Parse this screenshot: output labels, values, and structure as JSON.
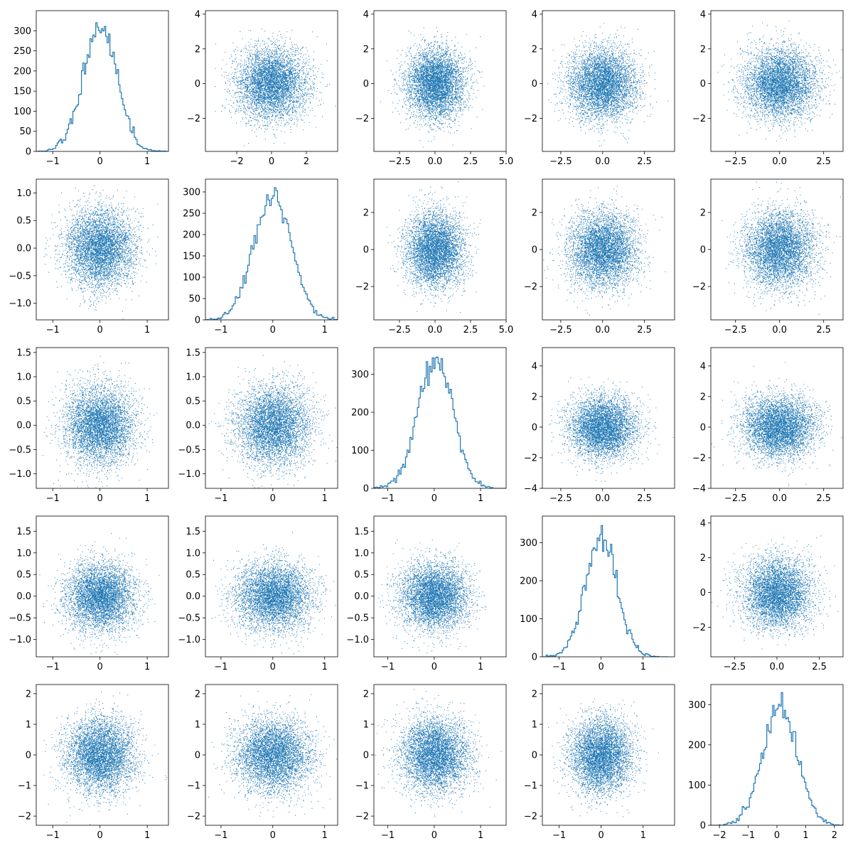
{
  "chart_data": {
    "type": "scatter-matrix",
    "rows": 5,
    "cols": 5,
    "color": "#1f77b4",
    "panels": [
      {
        "row": 0,
        "col": 0,
        "type": "histogram",
        "xlim": [
          -1.35,
          1.45
        ],
        "ylim": [
          0,
          350
        ],
        "xticks": [
          -1,
          0,
          1
        ],
        "yticks": [
          0,
          50,
          100,
          150,
          200,
          250,
          300
        ],
        "ylabels": [
          "0",
          "50",
          "100",
          "150",
          "200",
          "250",
          "300"
        ],
        "sdx": 0.36,
        "center": 0.0,
        "peak": 320
      },
      {
        "row": 0,
        "col": 1,
        "type": "scatter",
        "xlim": [
          -3.8,
          3.8
        ],
        "ylim": [
          -3.9,
          4.2
        ],
        "xticks": [
          -2,
          0,
          2
        ],
        "yticks": [
          -2,
          0,
          2,
          4
        ],
        "xlabels": [
          "−2",
          "0",
          "2"
        ],
        "ylabels": [
          "−2",
          "0",
          "2",
          "4"
        ],
        "sdx": 1.0,
        "sdy": 1.0
      },
      {
        "row": 0,
        "col": 2,
        "type": "scatter",
        "xlim": [
          -4.3,
          5.0
        ],
        "ylim": [
          -3.9,
          4.2
        ],
        "xticks": [
          -2.5,
          0,
          2.5,
          5
        ],
        "yticks": [
          -2,
          0,
          2,
          4
        ],
        "xlabels": [
          "−2.5",
          "0.0",
          "2.5",
          "5.0"
        ],
        "ylabels": [
          "−2",
          "0",
          "2",
          "4"
        ],
        "sdx": 1.0,
        "sdy": 1.0
      },
      {
        "row": 0,
        "col": 3,
        "type": "scatter",
        "xlim": [
          -3.6,
          4.3
        ],
        "ylim": [
          -3.9,
          4.2
        ],
        "xticks": [
          -2.5,
          0,
          2.5
        ],
        "yticks": [
          -2,
          0,
          2,
          4
        ],
        "xlabels": [
          "−2.5",
          "0.0",
          "2.5"
        ],
        "ylabels": [
          "−2",
          "0",
          "2",
          "4"
        ],
        "sdx": 1.0,
        "sdy": 1.0
      },
      {
        "row": 0,
        "col": 4,
        "type": "scatter",
        "xlim": [
          -3.9,
          3.6
        ],
        "ylim": [
          -3.9,
          4.2
        ],
        "xticks": [
          -2.5,
          0,
          2.5
        ],
        "yticks": [
          -2,
          0,
          2,
          4
        ],
        "xlabels": [
          "−2.5",
          "0.0",
          "2.5"
        ],
        "ylabels": [
          "−2",
          "0",
          "2",
          "4"
        ],
        "sdx": 1.0,
        "sdy": 1.0
      },
      {
        "row": 1,
        "col": 0,
        "type": "scatter",
        "xlim": [
          -1.35,
          1.45
        ],
        "ylim": [
          -1.3,
          1.25
        ],
        "xticks": [
          -1,
          0,
          1
        ],
        "yticks": [
          -1,
          -0.5,
          0,
          0.5,
          1
        ],
        "xlabels": [
          "−1",
          "0",
          "1"
        ],
        "ylabels": [
          "−1.0",
          "−0.5",
          "0.0",
          "0.5",
          "1.0"
        ],
        "sdx": 0.36,
        "sdy": 0.36
      },
      {
        "row": 1,
        "col": 1,
        "type": "histogram",
        "xlim": [
          -1.3,
          1.25
        ],
        "ylim": [
          0,
          330
        ],
        "xticks": [
          -1,
          0,
          1
        ],
        "yticks": [
          0,
          50,
          100,
          150,
          200,
          250,
          300
        ],
        "ylabels": [
          "0",
          "50",
          "100",
          "150",
          "200",
          "250",
          "300"
        ],
        "sdx": 0.36,
        "center": 0.0,
        "peak": 310
      },
      {
        "row": 1,
        "col": 2,
        "type": "scatter",
        "xlim": [
          -4.3,
          5.0
        ],
        "ylim": [
          -3.8,
          3.8
        ],
        "xticks": [
          -2.5,
          0,
          2.5,
          5
        ],
        "yticks": [
          -2,
          0,
          2
        ],
        "xlabels": [
          "−2.5",
          "0.0",
          "2.5",
          "5.0"
        ],
        "ylabels": [
          "−2",
          "0",
          "2"
        ],
        "sdx": 1.0,
        "sdy": 1.0
      },
      {
        "row": 1,
        "col": 3,
        "type": "scatter",
        "xlim": [
          -3.6,
          4.3
        ],
        "ylim": [
          -3.8,
          3.8
        ],
        "xticks": [
          -2.5,
          0,
          2.5
        ],
        "yticks": [
          -2,
          0,
          2
        ],
        "xlabels": [
          "−2.5",
          "0.0",
          "2.5"
        ],
        "ylabels": [
          "−2",
          "0",
          "2"
        ],
        "sdx": 1.0,
        "sdy": 1.0
      },
      {
        "row": 1,
        "col": 4,
        "type": "scatter",
        "xlim": [
          -3.9,
          3.6
        ],
        "ylim": [
          -3.8,
          3.8
        ],
        "xticks": [
          -2.5,
          0,
          2.5
        ],
        "yticks": [
          -2,
          0,
          2
        ],
        "xlabels": [
          "−2.5",
          "0.0",
          "2.5"
        ],
        "ylabels": [
          "−2",
          "0",
          "2"
        ],
        "sdx": 1.0,
        "sdy": 1.0
      },
      {
        "row": 2,
        "col": 0,
        "type": "scatter",
        "xlim": [
          -1.35,
          1.45
        ],
        "ylim": [
          -1.3,
          1.6
        ],
        "xticks": [
          -1,
          0,
          1
        ],
        "yticks": [
          -1,
          -0.5,
          0,
          0.5,
          1,
          1.5
        ],
        "xlabels": [
          "−1",
          "0",
          "1"
        ],
        "ylabels": [
          "−1.0",
          "−0.5",
          "0.0",
          "0.5",
          "1.0",
          "1.5"
        ],
        "sdx": 0.36,
        "sdy": 0.4
      },
      {
        "row": 2,
        "col": 1,
        "type": "scatter",
        "xlim": [
          -1.3,
          1.25
        ],
        "ylim": [
          -1.3,
          1.6
        ],
        "xticks": [
          -1,
          0,
          1
        ],
        "yticks": [
          -1,
          -0.5,
          0,
          0.5,
          1,
          1.5
        ],
        "xlabels": [
          "−1",
          "0",
          "1"
        ],
        "ylabels": [
          "−1.0",
          "−0.5",
          "0.0",
          "0.5",
          "1.0",
          "1.5"
        ],
        "sdx": 0.36,
        "sdy": 0.4
      },
      {
        "row": 2,
        "col": 2,
        "type": "histogram",
        "xlim": [
          -1.3,
          1.55
        ],
        "ylim": [
          0,
          370
        ],
        "xticks": [
          -1,
          0,
          1
        ],
        "yticks": [
          0,
          100,
          200,
          300
        ],
        "ylabels": [
          "0",
          "100",
          "200",
          "300"
        ],
        "sdx": 0.38,
        "center": 0.02,
        "peak": 345
      },
      {
        "row": 2,
        "col": 3,
        "type": "scatter",
        "xlim": [
          -3.6,
          4.3
        ],
        "ylim": [
          -4.0,
          5.2
        ],
        "xticks": [
          -2.5,
          0,
          2.5
        ],
        "yticks": [
          -4,
          -2,
          0,
          2,
          4
        ],
        "xlabels": [
          "−2.5",
          "0.0",
          "2.5"
        ],
        "ylabels": [
          "−4",
          "−2",
          "0",
          "2",
          "4"
        ],
        "sdx": 1.0,
        "sdy": 1.0
      },
      {
        "row": 2,
        "col": 4,
        "type": "scatter",
        "xlim": [
          -3.9,
          3.6
        ],
        "ylim": [
          -4.0,
          5.2
        ],
        "xticks": [
          -2.5,
          0,
          2.5
        ],
        "yticks": [
          -4,
          -2,
          0,
          2,
          4
        ],
        "xlabels": [
          "−2.5",
          "0.0",
          "2.5"
        ],
        "ylabels": [
          "−4",
          "−2",
          "0",
          "2",
          "4"
        ],
        "sdx": 1.0,
        "sdy": 1.0
      },
      {
        "row": 3,
        "col": 0,
        "type": "scatter",
        "xlim": [
          -1.35,
          1.45
        ],
        "ylim": [
          -1.4,
          1.85
        ],
        "xticks": [
          -1,
          0,
          1
        ],
        "yticks": [
          -1,
          -0.5,
          0,
          0.5,
          1,
          1.5
        ],
        "xlabels": [
          "−1",
          "0",
          "1"
        ],
        "ylabels": [
          "−1.0",
          "−0.5",
          "0.0",
          "0.5",
          "1.0",
          "1.5"
        ],
        "sdx": 0.36,
        "sdy": 0.38
      },
      {
        "row": 3,
        "col": 1,
        "type": "scatter",
        "xlim": [
          -1.3,
          1.25
        ],
        "ylim": [
          -1.4,
          1.85
        ],
        "xticks": [
          -1,
          0,
          1
        ],
        "yticks": [
          -1,
          -0.5,
          0,
          0.5,
          1,
          1.5
        ],
        "xlabels": [
          "−1",
          "0",
          "1"
        ],
        "ylabels": [
          "−1.0",
          "−0.5",
          "0.0",
          "0.5",
          "1.0",
          "1.5"
        ],
        "sdx": 0.36,
        "sdy": 0.38
      },
      {
        "row": 3,
        "col": 2,
        "type": "scatter",
        "xlim": [
          -1.3,
          1.55
        ],
        "ylim": [
          -1.4,
          1.85
        ],
        "xticks": [
          -1,
          0,
          1
        ],
        "yticks": [
          -1,
          -0.5,
          0,
          0.5,
          1,
          1.5
        ],
        "xlabels": [
          "−1",
          "0",
          "1"
        ],
        "ylabels": [
          "−1.0",
          "−0.5",
          "0.0",
          "0.5",
          "1.0",
          "1.5"
        ],
        "sdx": 0.36,
        "sdy": 0.38
      },
      {
        "row": 3,
        "col": 3,
        "type": "histogram",
        "xlim": [
          -1.4,
          1.75
        ],
        "ylim": [
          0,
          370
        ],
        "xticks": [
          -1,
          0,
          1
        ],
        "yticks": [
          0,
          100,
          200,
          300
        ],
        "ylabels": [
          "0",
          "100",
          "200",
          "300"
        ],
        "sdx": 0.38,
        "center": 0.0,
        "peak": 345
      },
      {
        "row": 3,
        "col": 4,
        "type": "scatter",
        "xlim": [
          -3.9,
          3.9
        ],
        "ylim": [
          -3.7,
          4.4
        ],
        "xticks": [
          -2.5,
          0,
          2.5
        ],
        "yticks": [
          -2,
          0,
          2,
          4
        ],
        "xlabels": [
          "−2.5",
          "0.0",
          "2.5"
        ],
        "ylabels": [
          "−2",
          "0",
          "2",
          "4"
        ],
        "sdx": 1.0,
        "sdy": 1.0
      },
      {
        "row": 4,
        "col": 0,
        "type": "scatter",
        "xlim": [
          -1.35,
          1.45
        ],
        "ylim": [
          -2.3,
          2.3
        ],
        "xticks": [
          -1,
          0,
          1
        ],
        "yticks": [
          -2,
          -1,
          0,
          1,
          2
        ],
        "xlabels": [
          "−1",
          "0",
          "1"
        ],
        "ylabels": [
          "−2",
          "−1",
          "0",
          "1",
          "2"
        ],
        "sdx": 0.36,
        "sdy": 0.6
      },
      {
        "row": 4,
        "col": 1,
        "type": "scatter",
        "xlim": [
          -1.3,
          1.25
        ],
        "ylim": [
          -2.3,
          2.3
        ],
        "xticks": [
          -1,
          0,
          1
        ],
        "yticks": [
          -2,
          -1,
          0,
          1,
          2
        ],
        "xlabels": [
          "−1",
          "0",
          "1"
        ],
        "ylabels": [
          "−2",
          "−1",
          "0",
          "1",
          "2"
        ],
        "sdx": 0.36,
        "sdy": 0.6
      },
      {
        "row": 4,
        "col": 2,
        "type": "scatter",
        "xlim": [
          -1.3,
          1.55
        ],
        "ylim": [
          -2.3,
          2.3
        ],
        "xticks": [
          -1,
          0,
          1
        ],
        "yticks": [
          -2,
          -1,
          0,
          1,
          2
        ],
        "xlabels": [
          "−1",
          "0",
          "1"
        ],
        "ylabels": [
          "−2",
          "−1",
          "0",
          "1",
          "2"
        ],
        "sdx": 0.36,
        "sdy": 0.6
      },
      {
        "row": 4,
        "col": 3,
        "type": "scatter",
        "xlim": [
          -1.4,
          1.75
        ],
        "ylim": [
          -2.3,
          2.3
        ],
        "xticks": [
          -1,
          0,
          1
        ],
        "yticks": [
          -2,
          -1,
          0,
          1,
          2
        ],
        "xlabels": [
          "−1",
          "0",
          "1"
        ],
        "ylabels": [
          "−2",
          "−1",
          "0",
          "1",
          "2"
        ],
        "sdx": 0.36,
        "sdy": 0.6
      },
      {
        "row": 4,
        "col": 4,
        "type": "histogram",
        "xlim": [
          -2.3,
          2.3
        ],
        "ylim": [
          0,
          350
        ],
        "xticks": [
          -2,
          -1,
          0,
          1,
          2
        ],
        "yticks": [
          0,
          100,
          200,
          300
        ],
        "xlabels": [
          "−2",
          "−1",
          "0",
          "1",
          "2"
        ],
        "ylabels": [
          "0",
          "100",
          "200",
          "300"
        ],
        "sdx": 0.6,
        "center": 0.1,
        "peak": 330
      }
    ]
  }
}
